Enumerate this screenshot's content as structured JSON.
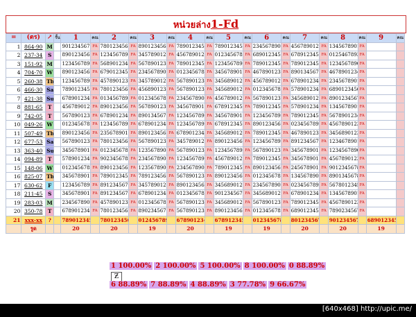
{
  "title_prefix": "หน่วยล่าง",
  "title_main": "1-Fd",
  "header": {
    "corner": "=",
    "code_label": "(ตร)",
    "arrow": "↗",
    "sub": "รั้น",
    "digits": [
      "1",
      "2",
      "3",
      "4",
      "5",
      "6",
      "7",
      "8",
      "9"
    ],
    "sub_label": "คณ"
  },
  "rows": [
    {
      "n": "1",
      "code": "864-90",
      "letter": "M",
      "color": "#bfe6bf",
      "vals": [
        "9012345678",
        "7801234567",
        "8901234567",
        "7890123456",
        "7890123456",
        "2345678901",
        "4567890123",
        "1345678901"
      ]
    },
    {
      "n": "2",
      "code": "237-34",
      "letter": "S",
      "color": "#e7b5e7",
      "vals": [
        "8901234567",
        "1234567890",
        "3457890123",
        "4567890123",
        "0123456789",
        "6890123456",
        "6789123456",
        "0125467893"
      ]
    },
    {
      "n": "3",
      "code": "151-92",
      "letter": "M",
      "color": "#bfe6bf",
      "vals": [
        "1234567890",
        "5689012345",
        "5678901234",
        "7890123456",
        "1234567890",
        "7890123456",
        "7890123456",
        "1234567890"
      ]
    },
    {
      "n": "4",
      "code": "704-70",
      "letter": "W",
      "color": "#9be09b",
      "vals": [
        "8901234567",
        "6790123456",
        "2345678901",
        "0123456789",
        "3456789012",
        "4678901234",
        "8901345678",
        "4678901234"
      ]
    },
    {
      "n": "5",
      "code": "260-38",
      "letter": "Th",
      "color": "#f2c68a",
      "vals": [
        "1234567890",
        "4578901234",
        "3457890123",
        "5678901234",
        "3456890123",
        "4567890123",
        "6789012345",
        "2345678901"
      ]
    },
    {
      "n": "6",
      "code": "466-30",
      "letter": "Sa",
      "color": "#a9a9e8",
      "vals": [
        "7890123456",
        "7801234567",
        "4568901234",
        "5678901234",
        "3456890123",
        "0123456789",
        "5789012345",
        "6890123456"
      ]
    },
    {
      "n": "7",
      "code": "421-38",
      "letter": "Su",
      "color": "#a9a9e8",
      "vals": [
        "6789012345",
        "0134567890",
        "0123456789",
        "2345678901",
        "4567890123",
        "5678901234",
        "3456890123",
        "8901234567"
      ]
    },
    {
      "n": "8",
      "code": "881-65",
      "letter": "T",
      "color": "#f2b3c8",
      "vals": [
        "4567890123",
        "8901234567",
        "5678901234",
        "3456789012",
        "6789123456",
        "7890123456",
        "5789012345",
        "1345678901"
      ]
    },
    {
      "n": "9",
      "code": "742-05",
      "letter": "T",
      "color": "#f2b3c8",
      "vals": [
        "5678901234",
        "6789012345",
        "8901345678",
        "1234567890",
        "3456789012",
        "1234567890",
        "7890123456",
        "5678901234"
      ]
    },
    {
      "n": "10",
      "code": "049-26",
      "letter": "W",
      "color": "#9be09b",
      "vals": [
        "0123456789",
        "1234567890",
        "6789012345",
        "1234567890",
        "6789123456",
        "8901234567",
        "0234567890",
        "4567890123"
      ]
    },
    {
      "n": "11",
      "code": "507-49",
      "letter": "Th",
      "color": "#f2c68a",
      "vals": [
        "8901234567",
        "2356789012",
        "8901234567",
        "6789012345",
        "3456890123",
        "7890123456",
        "4678901234",
        "3456890123"
      ]
    },
    {
      "n": "12",
      "code": "677-53",
      "letter": "Sa",
      "color": "#a9a9e8",
      "vals": [
        "5678901234",
        "7801234567",
        "5678901234",
        "3457890123",
        "8901234567",
        "1234567890",
        "8912345678",
        "1234678901"
      ]
    },
    {
      "n": "13",
      "code": "363-40",
      "letter": "Su",
      "color": "#a9a9e8",
      "vals": [
        "3456789012",
        "0123456789",
        "1235678901",
        "5678901234",
        "1234567890",
        "5678901234",
        "3456789012",
        "1234567890"
      ]
    },
    {
      "n": "14",
      "code": "094-89",
      "letter": "T",
      "color": "#f2b3c8",
      "vals": [
        "5789012345",
        "9023456789",
        "2345678901",
        "1234567890",
        "4567890123",
        "7890123456",
        "3456789012",
        "4567890123"
      ]
    },
    {
      "n": "15",
      "code": "148-06",
      "letter": "W",
      "color": "#9be09b",
      "vals": [
        "0123456789",
        "8901234567",
        "1235678901",
        "2345678901",
        "7890123456",
        "8901234567",
        "2456789012",
        "9012345678"
      ]
    },
    {
      "n": "16",
      "code": "825-07",
      "letter": "Th",
      "color": "#f2c68a",
      "vals": [
        "3456789012",
        "7890123456",
        "7891234567",
        "5678901234",
        "8901234567",
        "0123456789",
        "1345678901",
        "8901345678"
      ]
    },
    {
      "n": "17",
      "code": "630-62",
      "letter": "F",
      "color": "#9be0f2",
      "vals": [
        "1234567890",
        "8912345678",
        "3457890123",
        "8901234567",
        "3456890123",
        "2345678901",
        "0234567890",
        "5678012345"
      ]
    },
    {
      "n": "18",
      "code": "211-45",
      "letter": "S",
      "color": "#e7b5e7",
      "vals": [
        "3456789012",
        "8912345678",
        "6789012345",
        "0123456789",
        "9012345678",
        "3456890123",
        "6789012345",
        "1345678901"
      ]
    },
    {
      "n": "19",
      "code": "283-03",
      "letter": "M",
      "color": "#bfe6bf",
      "vals": [
        "2345678901",
        "4578901234",
        "0123456789",
        "5678901234",
        "3456890123",
        "5678901234",
        "7890123456",
        "4567890123"
      ]
    },
    {
      "n": "20",
      "code": "350-78",
      "letter": "T",
      "color": "#f2b3c8",
      "vals": [
        "6789012345",
        "7801234567",
        "8902345678",
        "5678901234",
        "8901234567",
        "0123456789",
        "6890123456",
        "7890234567"
      ]
    }
  ],
  "last_row": {
    "n": "21",
    "code": "xxx-xx",
    "letter": "?",
    "vals": [
      "7890123456",
      "7801234567",
      "0124567890",
      "6789012345",
      "6789123456",
      "0123456789",
      "8012345678",
      "9012345678",
      "6890123456"
    ]
  },
  "sum_row": {
    "label": "รูด",
    "vals": [
      "20",
      "20",
      "19",
      "20",
      "19",
      "19",
      "20",
      "20",
      "19"
    ]
  },
  "stats1": [
    {
      "k": "1",
      "v": "100.00%"
    },
    {
      "k": "2",
      "v": "100.00%"
    },
    {
      "k": "5",
      "v": "100.00%"
    },
    {
      "k": "8",
      "v": "100.00%"
    },
    {
      "k": "0",
      "v": "88.89%"
    }
  ],
  "stats2": [
    {
      "k": "6",
      "v": "88.89%"
    },
    {
      "k": "7",
      "v": "88.89%"
    },
    {
      "k": "4",
      "v": "88.89%"
    },
    {
      "k": "3",
      "v": "77.78%"
    },
    {
      "k": "9",
      "v": "66.67%"
    }
  ],
  "tool_glyph": "Ƶ",
  "watermark": "[640x468] http://upic.me/"
}
